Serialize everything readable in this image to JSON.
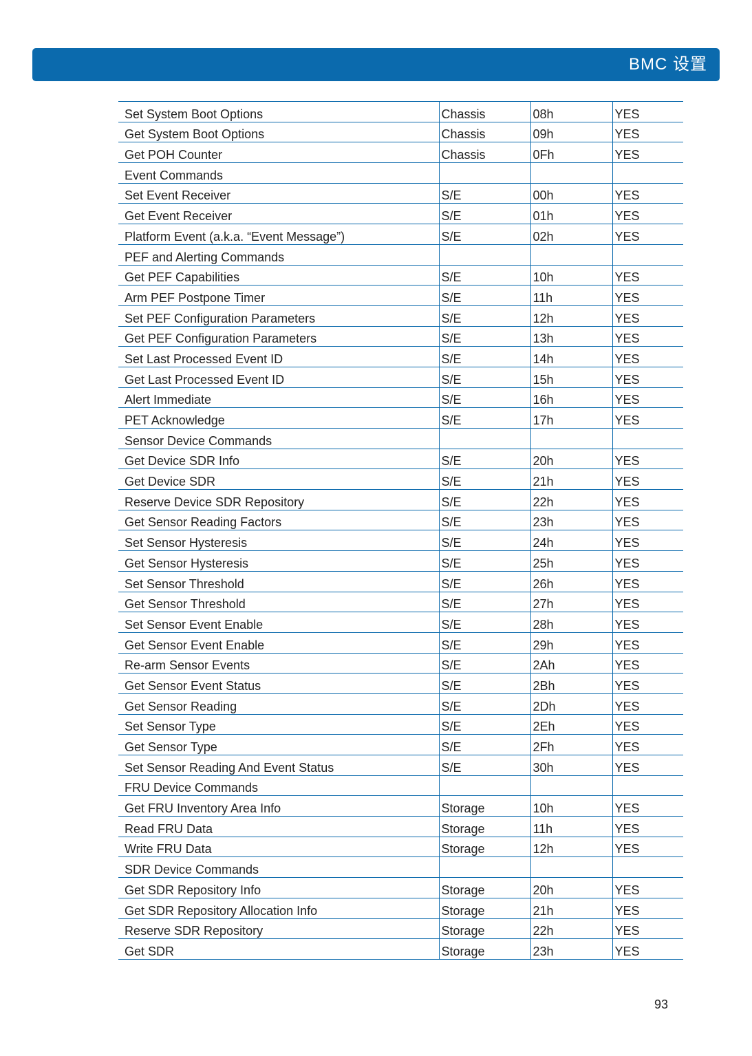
{
  "header": {
    "title": "BMC 设置"
  },
  "table": {
    "rows": [
      [
        "Set System Boot Options",
        "Chassis",
        "08h",
        "YES"
      ],
      [
        "Get System Boot Options",
        "Chassis",
        "09h",
        "YES"
      ],
      [
        "Get POH Counter",
        "Chassis",
        "0Fh",
        "YES"
      ],
      [
        "Event Commands",
        "",
        "",
        ""
      ],
      [
        "Set Event Receiver",
        "S/E",
        "00h",
        "YES"
      ],
      [
        "Get Event Receiver",
        "S/E",
        "01h",
        "YES"
      ],
      [
        "Platform Event (a.k.a. “Event Message”)",
        "S/E",
        "02h",
        "YES"
      ],
      [
        "PEF and Alerting Commands",
        "",
        "",
        ""
      ],
      [
        "Get PEF Capabilities",
        "S/E",
        "10h",
        "YES"
      ],
      [
        "Arm PEF Postpone Timer",
        "S/E",
        "11h",
        "YES"
      ],
      [
        "Set PEF Configuration Parameters",
        "S/E",
        "12h",
        "YES"
      ],
      [
        "Get PEF Configuration Parameters",
        "S/E",
        "13h",
        "YES"
      ],
      [
        "Set Last Processed Event ID",
        "S/E",
        "14h",
        "YES"
      ],
      [
        "Get Last Processed Event ID",
        "S/E",
        "15h",
        "YES"
      ],
      [
        "Alert Immediate",
        "S/E",
        "16h",
        "YES"
      ],
      [
        "PET Acknowledge",
        "S/E",
        "17h",
        "YES"
      ],
      [
        "Sensor Device Commands",
        "",
        "",
        ""
      ],
      [
        "Get Device SDR Info",
        "S/E",
        "20h",
        "YES"
      ],
      [
        "Get Device SDR",
        "S/E",
        "21h",
        "YES"
      ],
      [
        "Reserve Device SDR Repository",
        "S/E",
        "22h",
        "YES"
      ],
      [
        "Get Sensor Reading Factors",
        "S/E",
        "23h",
        "YES"
      ],
      [
        "Set Sensor Hysteresis",
        "S/E",
        "24h",
        "YES"
      ],
      [
        "Get Sensor Hysteresis",
        "S/E",
        "25h",
        "YES"
      ],
      [
        "Set Sensor Threshold",
        "S/E",
        "26h",
        "YES"
      ],
      [
        "Get Sensor Threshold",
        "S/E",
        "27h",
        "YES"
      ],
      [
        "Set Sensor Event Enable",
        "S/E",
        "28h",
        "YES"
      ],
      [
        "Get Sensor Event Enable",
        "S/E",
        "29h",
        "YES"
      ],
      [
        "Re-arm Sensor Events",
        "S/E",
        "2Ah",
        "YES"
      ],
      [
        "Get Sensor Event Status",
        "S/E",
        "2Bh",
        "YES"
      ],
      [
        "Get Sensor Reading",
        "S/E",
        "2Dh",
        "YES"
      ],
      [
        "Set Sensor Type",
        "S/E",
        "2Eh",
        "YES"
      ],
      [
        "Get Sensor Type",
        "S/E",
        "2Fh",
        "YES"
      ],
      [
        "Set Sensor Reading And Event Status",
        "S/E",
        "30h",
        "YES"
      ],
      [
        "FRU Device Commands",
        "",
        "",
        ""
      ],
      [
        "Get FRU Inventory Area Info",
        "Storage",
        "10h",
        "YES"
      ],
      [
        "Read FRU Data",
        "Storage",
        "11h",
        "YES"
      ],
      [
        "Write FRU Data",
        "Storage",
        "12h",
        "YES"
      ],
      [
        "SDR Device Commands",
        "",
        "",
        ""
      ],
      [
        "Get SDR Repository Info",
        "Storage",
        "20h",
        "YES"
      ],
      [
        "Get SDR Repository Allocation Info",
        "Storage",
        "21h",
        "YES"
      ],
      [
        "Reserve SDR Repository",
        "Storage",
        "22h",
        "YES"
      ],
      [
        "Get SDR",
        "Storage",
        "23h",
        "YES"
      ]
    ]
  },
  "footer": {
    "page_number": "93"
  },
  "colors": {
    "accent": "#0b6aad"
  }
}
